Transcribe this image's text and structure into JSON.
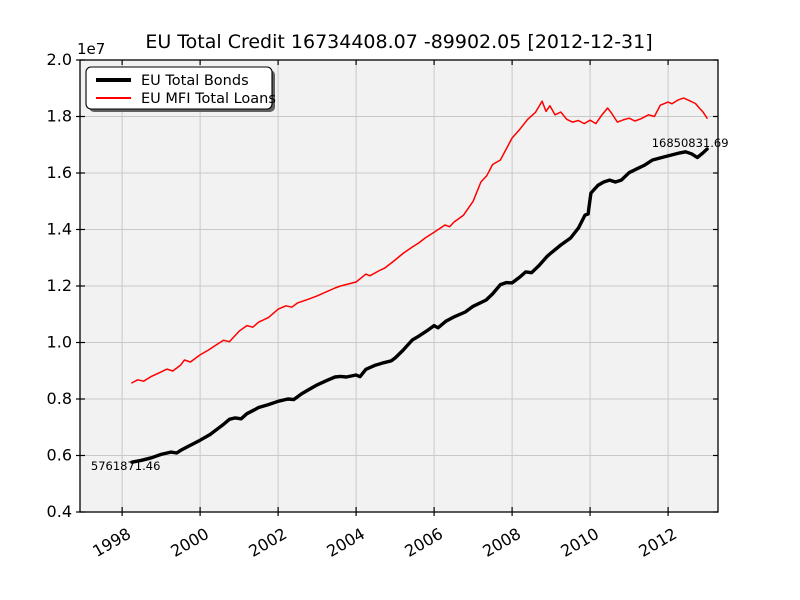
{
  "figure": {
    "background": "#ffffff",
    "axes_background": "#f2f2f2",
    "grid_color": "#c9c9c9",
    "spine_color": "#000000",
    "shadow_color": "#606060",
    "legend_background": "#ffffff"
  },
  "chart_data": {
    "type": "line",
    "title": "EU Total Credit 16734408.07 -89902.05 [2012-12-31]",
    "offset_label": "1e7",
    "xlabel": "",
    "ylabel": "",
    "grid": true,
    "legend_position": "upper-left",
    "xlim": [
      1996.92,
      2013.28
    ],
    "ylim": [
      4000000,
      20000000
    ],
    "x_ticks": [
      {
        "value": 1998,
        "label": "1998"
      },
      {
        "value": 2000,
        "label": "2000"
      },
      {
        "value": 2002,
        "label": "2002"
      },
      {
        "value": 2004,
        "label": "2004"
      },
      {
        "value": 2006,
        "label": "2006"
      },
      {
        "value": 2008,
        "label": "2008"
      },
      {
        "value": 2010,
        "label": "2010"
      },
      {
        "value": 2012,
        "label": "2012"
      }
    ],
    "y_ticks": [
      {
        "value": 4000000,
        "label": "0.4"
      },
      {
        "value": 6000000,
        "label": "0.6"
      },
      {
        "value": 8000000,
        "label": "0.8"
      },
      {
        "value": 10000000,
        "label": "1.0"
      },
      {
        "value": 12000000,
        "label": "1.2"
      },
      {
        "value": 14000000,
        "label": "1.4"
      },
      {
        "value": 16000000,
        "label": "1.6"
      },
      {
        "value": 18000000,
        "label": "1.8"
      },
      {
        "value": 20000000,
        "label": "2.0"
      }
    ],
    "annotations": [
      {
        "text": "5761871.46",
        "x": 1997.2,
        "y": 5480000
      },
      {
        "text": "16850831.69",
        "x": 2011.58,
        "y": 16920000
      }
    ],
    "series": [
      {
        "name": "EU Total Bonds",
        "color": "#000000",
        "line_width": 3.4,
        "points": [
          [
            1998.25,
            5761871.46
          ],
          [
            1998.5,
            5830000
          ],
          [
            1998.75,
            5920000
          ],
          [
            1999.0,
            6040000
          ],
          [
            1999.25,
            6120000
          ],
          [
            1999.4,
            6090000
          ],
          [
            1999.5,
            6180000
          ],
          [
            1999.75,
            6360000
          ],
          [
            2000.0,
            6540000
          ],
          [
            2000.25,
            6740000
          ],
          [
            2000.5,
            7000000
          ],
          [
            2000.6,
            7100000
          ],
          [
            2000.75,
            7280000
          ],
          [
            2000.9,
            7330000
          ],
          [
            2001.05,
            7300000
          ],
          [
            2001.2,
            7480000
          ],
          [
            2001.4,
            7620000
          ],
          [
            2001.5,
            7700000
          ],
          [
            2001.75,
            7800000
          ],
          [
            2002.0,
            7920000
          ],
          [
            2002.25,
            8000000
          ],
          [
            2002.4,
            7980000
          ],
          [
            2002.6,
            8180000
          ],
          [
            2002.77,
            8320000
          ],
          [
            2003.0,
            8500000
          ],
          [
            2003.25,
            8660000
          ],
          [
            2003.46,
            8780000
          ],
          [
            2003.6,
            8800000
          ],
          [
            2003.75,
            8780000
          ],
          [
            2004.0,
            8850000
          ],
          [
            2004.1,
            8790000
          ],
          [
            2004.25,
            9050000
          ],
          [
            2004.5,
            9200000
          ],
          [
            2004.7,
            9280000
          ],
          [
            2004.9,
            9350000
          ],
          [
            2005.0,
            9450000
          ],
          [
            2005.2,
            9720000
          ],
          [
            2005.44,
            10090000
          ],
          [
            2005.6,
            10220000
          ],
          [
            2005.8,
            10400000
          ],
          [
            2006.0,
            10600000
          ],
          [
            2006.1,
            10520000
          ],
          [
            2006.3,
            10750000
          ],
          [
            2006.5,
            10900000
          ],
          [
            2006.8,
            11080000
          ],
          [
            2007.0,
            11280000
          ],
          [
            2007.33,
            11500000
          ],
          [
            2007.5,
            11720000
          ],
          [
            2007.7,
            12050000
          ],
          [
            2007.85,
            12120000
          ],
          [
            2008.0,
            12110000
          ],
          [
            2008.2,
            12320000
          ],
          [
            2008.35,
            12500000
          ],
          [
            2008.5,
            12470000
          ],
          [
            2008.7,
            12740000
          ],
          [
            2008.9,
            13050000
          ],
          [
            2009.0,
            13170000
          ],
          [
            2009.25,
            13450000
          ],
          [
            2009.5,
            13700000
          ],
          [
            2009.7,
            14050000
          ],
          [
            2009.87,
            14510000
          ],
          [
            2009.95,
            14550000
          ],
          [
            2010.02,
            15290000
          ],
          [
            2010.2,
            15560000
          ],
          [
            2010.35,
            15680000
          ],
          [
            2010.5,
            15750000
          ],
          [
            2010.65,
            15680000
          ],
          [
            2010.8,
            15750000
          ],
          [
            2011.0,
            16010000
          ],
          [
            2011.2,
            16150000
          ],
          [
            2011.4,
            16280000
          ],
          [
            2011.6,
            16460000
          ],
          [
            2011.9,
            16570000
          ],
          [
            2012.1,
            16640000
          ],
          [
            2012.3,
            16710000
          ],
          [
            2012.45,
            16750000
          ],
          [
            2012.6,
            16680000
          ],
          [
            2012.75,
            16550000
          ],
          [
            2012.9,
            16720000
          ],
          [
            2013.0,
            16850831.69
          ]
        ]
      },
      {
        "name": "EU MFI Total Loans",
        "color": "#ff0000",
        "line_width": 1.5,
        "points": [
          [
            1998.25,
            8570000
          ],
          [
            1998.4,
            8680000
          ],
          [
            1998.55,
            8630000
          ],
          [
            1998.75,
            8800000
          ],
          [
            1999.0,
            8960000
          ],
          [
            1999.15,
            9060000
          ],
          [
            1999.3,
            8990000
          ],
          [
            1999.5,
            9200000
          ],
          [
            1999.6,
            9380000
          ],
          [
            1999.75,
            9310000
          ],
          [
            2000.0,
            9560000
          ],
          [
            2000.2,
            9720000
          ],
          [
            2000.4,
            9900000
          ],
          [
            2000.6,
            10080000
          ],
          [
            2000.75,
            10030000
          ],
          [
            2001.0,
            10400000
          ],
          [
            2001.2,
            10600000
          ],
          [
            2001.35,
            10540000
          ],
          [
            2001.5,
            10720000
          ],
          [
            2001.75,
            10880000
          ],
          [
            2002.0,
            11180000
          ],
          [
            2002.2,
            11300000
          ],
          [
            2002.35,
            11250000
          ],
          [
            2002.5,
            11400000
          ],
          [
            2002.75,
            11520000
          ],
          [
            2003.0,
            11650000
          ],
          [
            2003.25,
            11800000
          ],
          [
            2003.46,
            11930000
          ],
          [
            2003.6,
            12000000
          ],
          [
            2003.8,
            12070000
          ],
          [
            2004.0,
            12140000
          ],
          [
            2004.25,
            12420000
          ],
          [
            2004.35,
            12360000
          ],
          [
            2004.6,
            12550000
          ],
          [
            2004.74,
            12640000
          ],
          [
            2005.0,
            12920000
          ],
          [
            2005.2,
            13150000
          ],
          [
            2005.44,
            13380000
          ],
          [
            2005.6,
            13520000
          ],
          [
            2005.77,
            13700000
          ],
          [
            2006.0,
            13900000
          ],
          [
            2006.28,
            14160000
          ],
          [
            2006.4,
            14100000
          ],
          [
            2006.5,
            14250000
          ],
          [
            2006.75,
            14500000
          ],
          [
            2007.0,
            15000000
          ],
          [
            2007.2,
            15680000
          ],
          [
            2007.35,
            15900000
          ],
          [
            2007.5,
            16300000
          ],
          [
            2007.7,
            16460000
          ],
          [
            2008.0,
            17240000
          ],
          [
            2008.2,
            17550000
          ],
          [
            2008.4,
            17900000
          ],
          [
            2008.6,
            18150000
          ],
          [
            2008.77,
            18540000
          ],
          [
            2008.87,
            18180000
          ],
          [
            2008.97,
            18380000
          ],
          [
            2009.1,
            18060000
          ],
          [
            2009.25,
            18160000
          ],
          [
            2009.4,
            17900000
          ],
          [
            2009.55,
            17800000
          ],
          [
            2009.7,
            17860000
          ],
          [
            2009.85,
            17750000
          ],
          [
            2010.0,
            17870000
          ],
          [
            2010.15,
            17750000
          ],
          [
            2010.3,
            18050000
          ],
          [
            2010.45,
            18300000
          ],
          [
            2010.55,
            18120000
          ],
          [
            2010.7,
            17800000
          ],
          [
            2010.85,
            17880000
          ],
          [
            2011.0,
            17940000
          ],
          [
            2011.15,
            17840000
          ],
          [
            2011.3,
            17920000
          ],
          [
            2011.5,
            18060000
          ],
          [
            2011.65,
            18000000
          ],
          [
            2011.8,
            18400000
          ],
          [
            2012.0,
            18510000
          ],
          [
            2012.1,
            18450000
          ],
          [
            2012.25,
            18580000
          ],
          [
            2012.4,
            18650000
          ],
          [
            2012.55,
            18560000
          ],
          [
            2012.7,
            18460000
          ],
          [
            2012.8,
            18300000
          ],
          [
            2012.9,
            18150000
          ],
          [
            2013.0,
            17940000
          ]
        ]
      }
    ]
  }
}
